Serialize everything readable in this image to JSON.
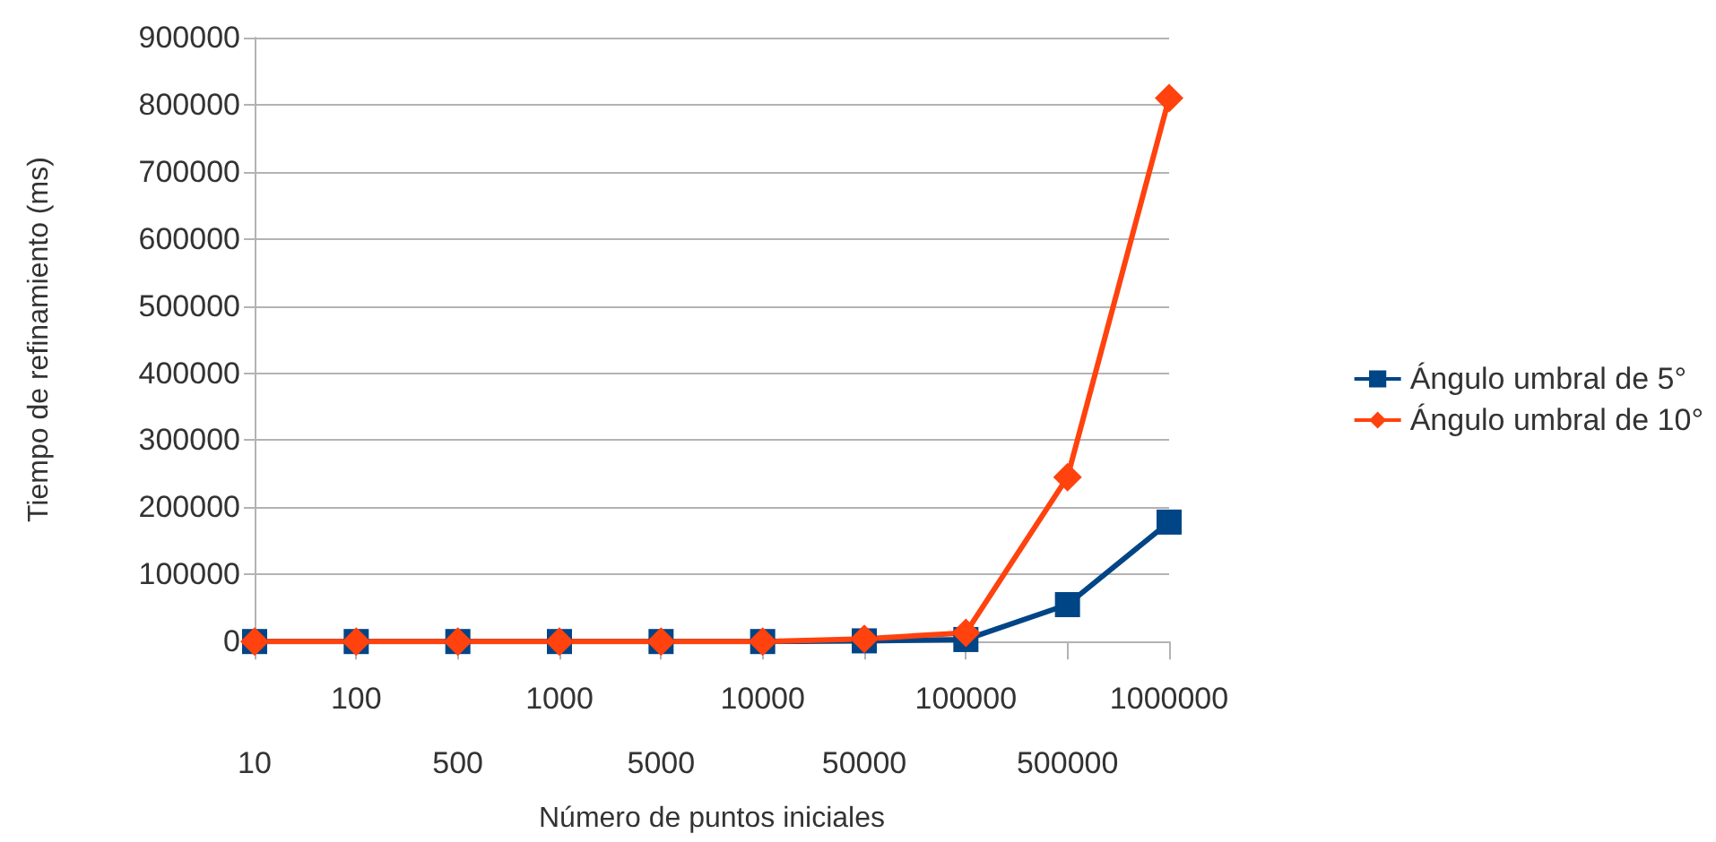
{
  "chart_data": {
    "type": "line",
    "xlabel": "Número de puntos iniciales",
    "ylabel": "Tiempo de refinamiento (ms)",
    "categories": [
      "10",
      "100",
      "500",
      "1000",
      "5000",
      "10000",
      "50000",
      "100000",
      "500000",
      "1000000"
    ],
    "series": [
      {
        "name": "Ángulo umbral de 5°",
        "color": "#004586",
        "marker": "square",
        "values": [
          0,
          0,
          0,
          0,
          0,
          0,
          1000,
          3000,
          55000,
          178000
        ]
      },
      {
        "name": "Ángulo umbral de 10°",
        "color": "#ff420e",
        "marker": "diamond",
        "values": [
          0,
          0,
          0,
          0,
          0,
          0,
          4000,
          13000,
          245000,
          810000
        ]
      }
    ],
    "ylim": [
      0,
      900000
    ],
    "yticks": [
      0,
      100000,
      200000,
      300000,
      400000,
      500000,
      600000,
      700000,
      800000,
      900000
    ],
    "grid": "y",
    "legend": "right",
    "line_style": "solid"
  }
}
